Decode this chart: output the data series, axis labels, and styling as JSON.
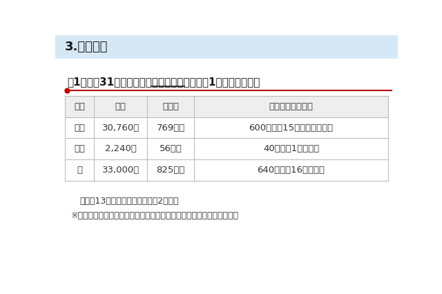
{
  "bg_color": "#ffffff",
  "header_bg": "#d6e8f5",
  "header_text": "3.募集定員",
  "header_text_color": "#1a1a1a",
  "subtitle": "（1）平成31年度公立高等学校全日制の課程第1学年の募集定員",
  "subtitle_underline": "全日制の課程",
  "subtitle_color": "#1a1a1a",
  "red_line_color": "#bb0000",
  "red_dot_color": "#bb0000",
  "table_border_color": "#bbbbbb",
  "table_header_bg": "#eeeeee",
  "col_headers": [
    "区分",
    "人数",
    "学級数",
    "増減（昨年度比）"
  ],
  "rows": [
    [
      "県立",
      "30,760人",
      "769学級",
      "600人減（15学級減）（注）"
    ],
    [
      "市立",
      "2,240人",
      "56学級",
      "40人減（1学級減）"
    ],
    [
      "計",
      "33,000人",
      "825学級",
      "640人減（16学級減）"
    ]
  ],
  "note1": "（注）13学級減及び統合に伴う2学級減",
  "note2": "※市立の募集定員は、市立稲毛高等学校附属中学校の卒業生分を除く。",
  "text_color": "#333333",
  "col_props": [
    0.09,
    0.165,
    0.145,
    0.6
  ]
}
